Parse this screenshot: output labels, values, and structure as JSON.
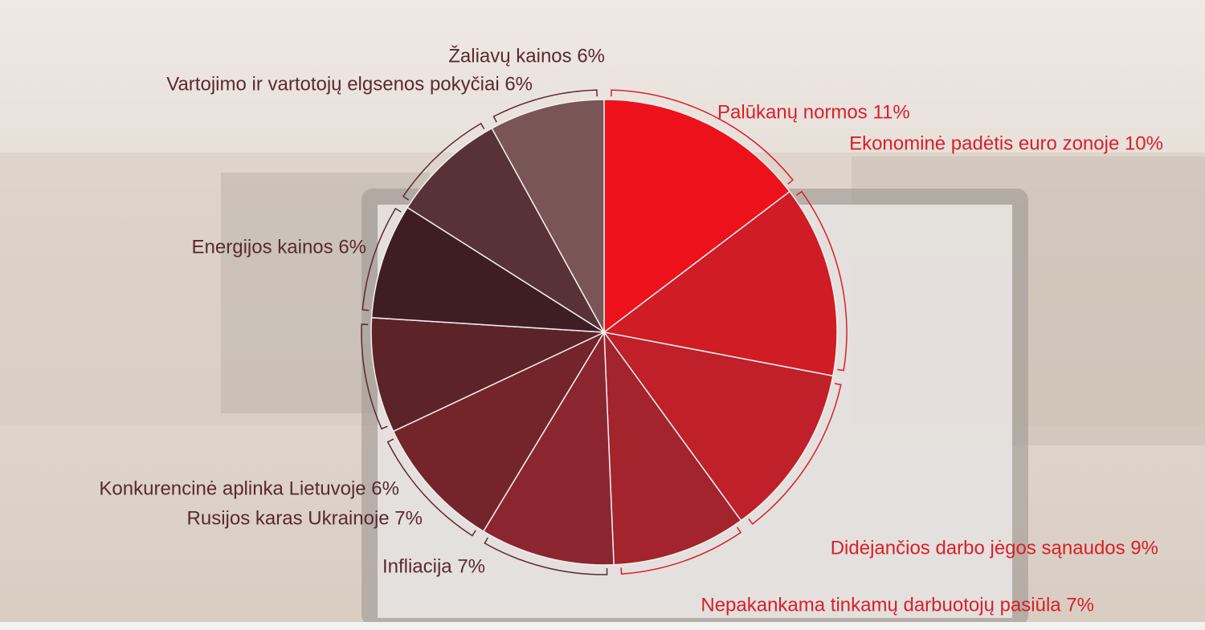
{
  "chart_data": {
    "type": "pie",
    "categories": [
      "Palūkanų normos 11%",
      "Ekonominė padėtis euro zonoje 10%",
      "Didėjančios darbo jėgos sąnaudos 9%",
      "Nepakankama tinkamų darbuotojų pasiūla 7%",
      "Infliacija 7%",
      "Rusijos karas Ukrainoje 7%",
      "Konkurencinė aplinka Lietuvoje 6%",
      "Energijos kainos 6%",
      "Vartojimo ir vartotojų elgsenos pokyčiai 6%",
      "Žaliavų kainos 6%"
    ],
    "values": [
      11,
      10,
      9,
      7,
      7,
      7,
      6,
      6,
      6,
      6
    ],
    "colors": [
      "#ec111b",
      "#d01c24",
      "#bf2029",
      "#a3242c",
      "#8b2630",
      "#74252c",
      "#5c2328",
      "#3e1e22",
      "#573236",
      "#7a5555"
    ]
  }
}
